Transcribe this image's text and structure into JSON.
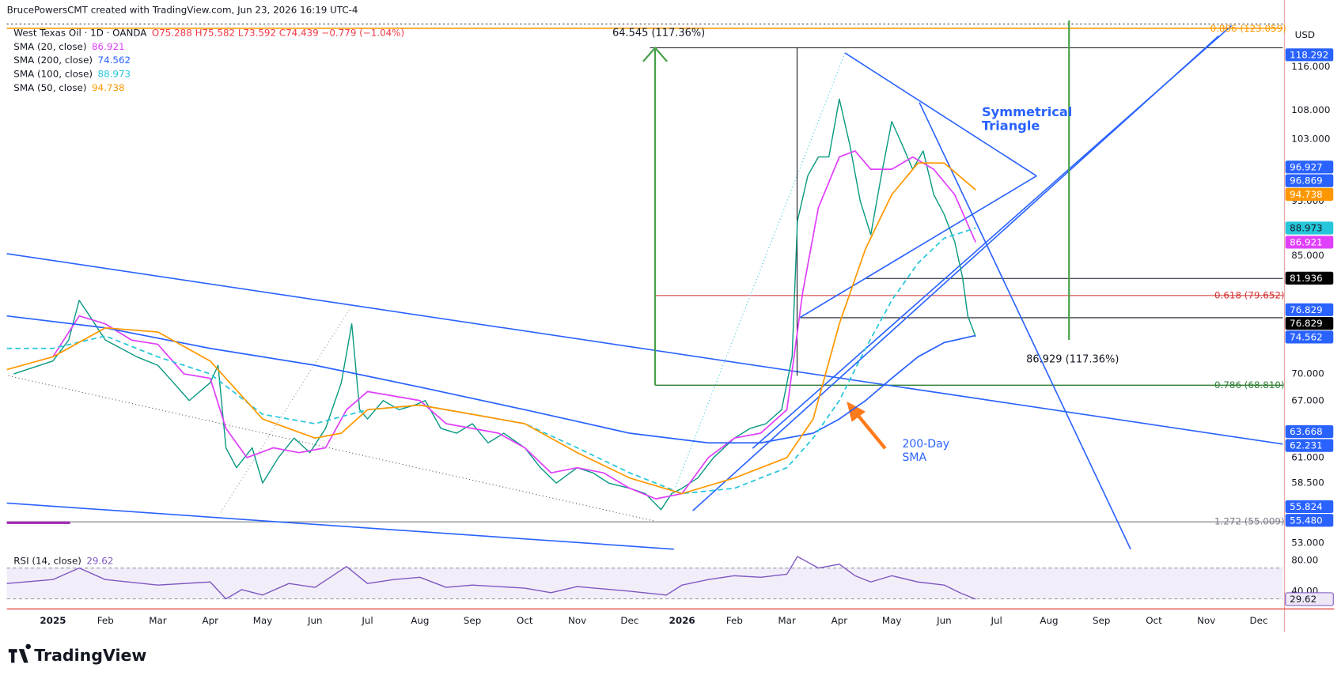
{
  "chart_data": [
    {
      "type": "line",
      "title": "BrucePowersCMT created with TradingView.com, Jun 23, 2026 16:19 UTC-4",
      "ohlc": "O75.288 H75.582 L73.592 C74.439 −0.779 (−1.04%)",
      "currency": "USD",
      "brand": "TradingView",
      "log_scale": true,
      "xlim": [
        -0.88,
        23.46
      ],
      "xticks": [
        {
          "value": 0,
          "label": "2025"
        },
        {
          "value": 1,
          "label": "Feb"
        },
        {
          "value": 2,
          "label": "Mar"
        },
        {
          "value": 3,
          "label": "Apr"
        },
        {
          "value": 4,
          "label": "May"
        },
        {
          "value": 5,
          "label": "Jun"
        },
        {
          "value": 6,
          "label": "Jul"
        },
        {
          "value": 7,
          "label": "Aug"
        },
        {
          "value": 8,
          "label": "Sep"
        },
        {
          "value": 9,
          "label": "Oct"
        },
        {
          "value": 10,
          "label": "Nov"
        },
        {
          "value": 11,
          "label": "Dec"
        },
        {
          "value": 12,
          "label": "2026"
        },
        {
          "value": 13,
          "label": "Feb"
        },
        {
          "value": 14,
          "label": "Mar"
        },
        {
          "value": 15,
          "label": "Apr"
        },
        {
          "value": 16,
          "label": "May"
        },
        {
          "value": 17,
          "label": "Jun"
        },
        {
          "value": 18,
          "label": "Jul"
        },
        {
          "value": 19,
          "label": "Aug"
        },
        {
          "value": 20,
          "label": "Sep"
        },
        {
          "value": 21,
          "label": "Oct"
        },
        {
          "value": 22,
          "label": "Nov"
        },
        {
          "value": 23,
          "label": "Dec"
        }
      ],
      "ylim": [
        52.7,
        124.1
      ],
      "yticks": [
        {
          "value": 116,
          "label": "116.000"
        },
        {
          "value": 108,
          "label": "108.000"
        },
        {
          "value": 103,
          "label": "103.000"
        },
        {
          "value": 93,
          "label": "93.000"
        },
        {
          "value": 85,
          "label": "85.000"
        },
        {
          "value": 70,
          "label": "70.000"
        },
        {
          "value": 67,
          "label": "67.000"
        },
        {
          "value": 61,
          "label": "61.000"
        },
        {
          "value": 58.5,
          "label": "58.500"
        },
        {
          "value": 53,
          "label": "53.000"
        }
      ],
      "series": [
        {
          "name": "West Texas Oil · 1D · OANDA",
          "color": "#089981",
          "x": [
            -0.75,
            -0.5,
            0,
            0.3,
            0.5,
            0.7,
            1,
            1.3,
            1.6,
            2,
            2.3,
            2.6,
            3,
            3.15,
            3.3,
            3.5,
            3.8,
            4,
            4.3,
            4.6,
            4.9,
            5.2,
            5.5,
            5.7,
            5.85,
            6,
            6.3,
            6.6,
            6.9,
            7.1,
            7.4,
            7.7,
            8,
            8.3,
            8.6,
            9,
            9.3,
            9.6,
            10,
            10.3,
            10.6,
            11,
            11.3,
            11.6,
            11.8,
            12,
            12.3,
            12.6,
            13,
            13.3,
            13.6,
            13.9,
            14.1,
            14.2,
            14.4,
            14.6,
            14.8,
            15,
            15.2,
            15.4,
            15.6,
            15.8,
            16,
            16.2,
            16.4,
            16.6,
            16.8,
            17,
            17.2,
            17.35,
            17.45,
            17.6
          ],
          "values": [
            70,
            70.5,
            71.5,
            74,
            79,
            77,
            74,
            73,
            72,
            71,
            69,
            67,
            69,
            71,
            62,
            60,
            62,
            58.5,
            61,
            63,
            61.5,
            64,
            69,
            76,
            66,
            65,
            67,
            66,
            66.5,
            67,
            64,
            63.5,
            64.5,
            62.5,
            63.5,
            62,
            60,
            58.5,
            60,
            59.5,
            58.5,
            58,
            57.5,
            56,
            57.5,
            58,
            59,
            61,
            63,
            64,
            64.5,
            66,
            72,
            90,
            97,
            100,
            100,
            110,
            102,
            93,
            88,
            97,
            106,
            102,
            98,
            101,
            94,
            91,
            87,
            82,
            77,
            74.4
          ]
        },
        {
          "name": "SMA (20, close)",
          "last_label": "86.921",
          "color": "#e040fb",
          "x": [
            0,
            0.5,
            1,
            1.5,
            2,
            2.5,
            3,
            3.3,
            3.7,
            4.2,
            4.7,
            5.2,
            5.6,
            6,
            6.5,
            7,
            7.5,
            8,
            8.5,
            9,
            9.5,
            10,
            10.5,
            11,
            11.5,
            12,
            12.5,
            13,
            13.5,
            14,
            14.3,
            14.6,
            15,
            15.3,
            15.6,
            16,
            16.4,
            16.8,
            17.2,
            17.6
          ],
          "values": [
            72,
            77,
            76,
            74,
            73.5,
            70,
            69.5,
            64,
            61,
            62,
            61.5,
            62,
            66,
            68,
            67.5,
            67,
            64.5,
            64,
            63.5,
            62,
            59.5,
            60,
            59.5,
            58,
            57,
            57.5,
            61,
            63,
            63.5,
            66,
            80,
            92,
            100,
            101,
            98,
            98,
            100,
            98,
            94,
            86.921
          ]
        },
        {
          "name": "SMA (200, close)",
          "last_label": "74.562",
          "color": "#2962ff",
          "x": [
            -0.88,
            1,
            3,
            5,
            7,
            9,
            11,
            12.5,
            13.5,
            14.5,
            15,
            15.5,
            16,
            16.5,
            17,
            17.6
          ],
          "values": [
            77,
            75.5,
            73,
            71,
            68.5,
            66,
            63.5,
            62.5,
            62.5,
            63.5,
            65,
            67,
            69.5,
            72,
            73.7,
            74.562
          ]
        },
        {
          "name": "SMA (100, close)",
          "last_label": "88.973",
          "color": "#26c6da",
          "dashed": true,
          "x": [
            -0.88,
            0,
            1,
            2,
            3,
            4,
            5,
            6,
            7,
            8,
            9,
            10,
            11,
            12,
            13,
            14,
            14.5,
            15,
            15.5,
            16,
            16.5,
            17,
            17.6
          ],
          "values": [
            73,
            73,
            74.5,
            72,
            70,
            65.5,
            64.5,
            66,
            66.5,
            65.5,
            64.5,
            62,
            59.5,
            57.5,
            58,
            60,
            63,
            67,
            73,
            79,
            84,
            87.5,
            88.973
          ]
        },
        {
          "name": "SMA (50, close)",
          "last_label": "94.738",
          "color": "#ff9800",
          "x": [
            -0.88,
            0,
            1,
            2,
            3,
            4,
            5,
            5.5,
            6,
            7,
            8,
            9,
            10,
            11,
            12,
            13,
            14,
            14.5,
            15,
            15.5,
            16,
            16.5,
            17,
            17.6
          ],
          "values": [
            70.5,
            72,
            75.5,
            75,
            71.5,
            65,
            63,
            63.5,
            66,
            66.5,
            65.5,
            64.5,
            61.5,
            59,
            57.5,
            59,
            61,
            65,
            76,
            86,
            94,
            99,
            99,
            94.738
          ]
        }
      ],
      "price_badges": [
        {
          "value": 118.292,
          "label": "118.292",
          "color": "#2962ff"
        },
        {
          "value": 96.927,
          "label": "96.927",
          "color": "#2962ff"
        },
        {
          "value": 96.869,
          "label": "96.869",
          "color": "#2962ff"
        },
        {
          "value": 94.738,
          "label": "94.738",
          "color": "#ff9800"
        },
        {
          "value": 88.973,
          "label": "88.973",
          "color": "#26c6da"
        },
        {
          "value": 86.921,
          "label": "86.921",
          "color": "#e040fb"
        },
        {
          "value": 81.936,
          "label": "81.936",
          "color": "#000000"
        },
        {
          "value": 76.829,
          "label": "76.829",
          "color": "#2962ff"
        },
        {
          "value": 76.829,
          "label": "76.829",
          "color": "#000000"
        },
        {
          "value": 74.562,
          "label": "74.562",
          "color": "#2962ff"
        },
        {
          "value": 63.668,
          "label": "63.668",
          "color": "#2962ff"
        },
        {
          "value": 62.231,
          "label": "62.231",
          "color": "#2962ff"
        },
        {
          "value": 55.824,
          "label": "55.824",
          "color": "#2962ff"
        },
        {
          "value": 55.48,
          "label": "55.480",
          "color": "#2962ff"
        }
      ],
      "fib_labels": [
        {
          "text": "0.886 (123.059)",
          "color": "#ff9800"
        },
        {
          "text": "0.618 (79.652)",
          "color": "#d32f2f"
        },
        {
          "text": "0.786 (68.810)",
          "color": "#2e7d32"
        },
        {
          "text": "1.272 (55.009)",
          "color": "#787b86"
        }
      ],
      "annotations": [
        "64.545 (117.36%)",
        "86.929 (117.36%)",
        "Symmetrical",
        "Triangle",
        "200-Day",
        "SMA"
      ]
    },
    {
      "type": "line",
      "ylim": [
        18,
        89
      ],
      "yticks": [
        {
          "value": 80,
          "label": "80.00"
        },
        {
          "value": 40,
          "label": "40.00"
        }
      ],
      "band": [
        30,
        70
      ],
      "series": [
        {
          "name": "RSI (14, close)",
          "last_label": "29.62",
          "color": "#7e57c2",
          "x": [
            -0.88,
            0,
            0.5,
            1,
            2,
            3,
            3.3,
            3.6,
            4,
            4.5,
            5,
            5.6,
            6,
            6.5,
            7,
            7.5,
            8,
            9,
            9.5,
            10,
            11,
            11.7,
            12,
            12.5,
            13,
            13.5,
            14,
            14.2,
            14.6,
            15,
            15.3,
            15.6,
            16,
            16.5,
            17,
            17.3,
            17.6
          ],
          "values": [
            50,
            55,
            70,
            55,
            48,
            52,
            30,
            42,
            35,
            50,
            45,
            72,
            50,
            55,
            58,
            45,
            48,
            44,
            38,
            46,
            40,
            35,
            48,
            55,
            60,
            58,
            62,
            85,
            70,
            75,
            60,
            52,
            60,
            52,
            48,
            38,
            29.62
          ]
        }
      ]
    }
  ]
}
